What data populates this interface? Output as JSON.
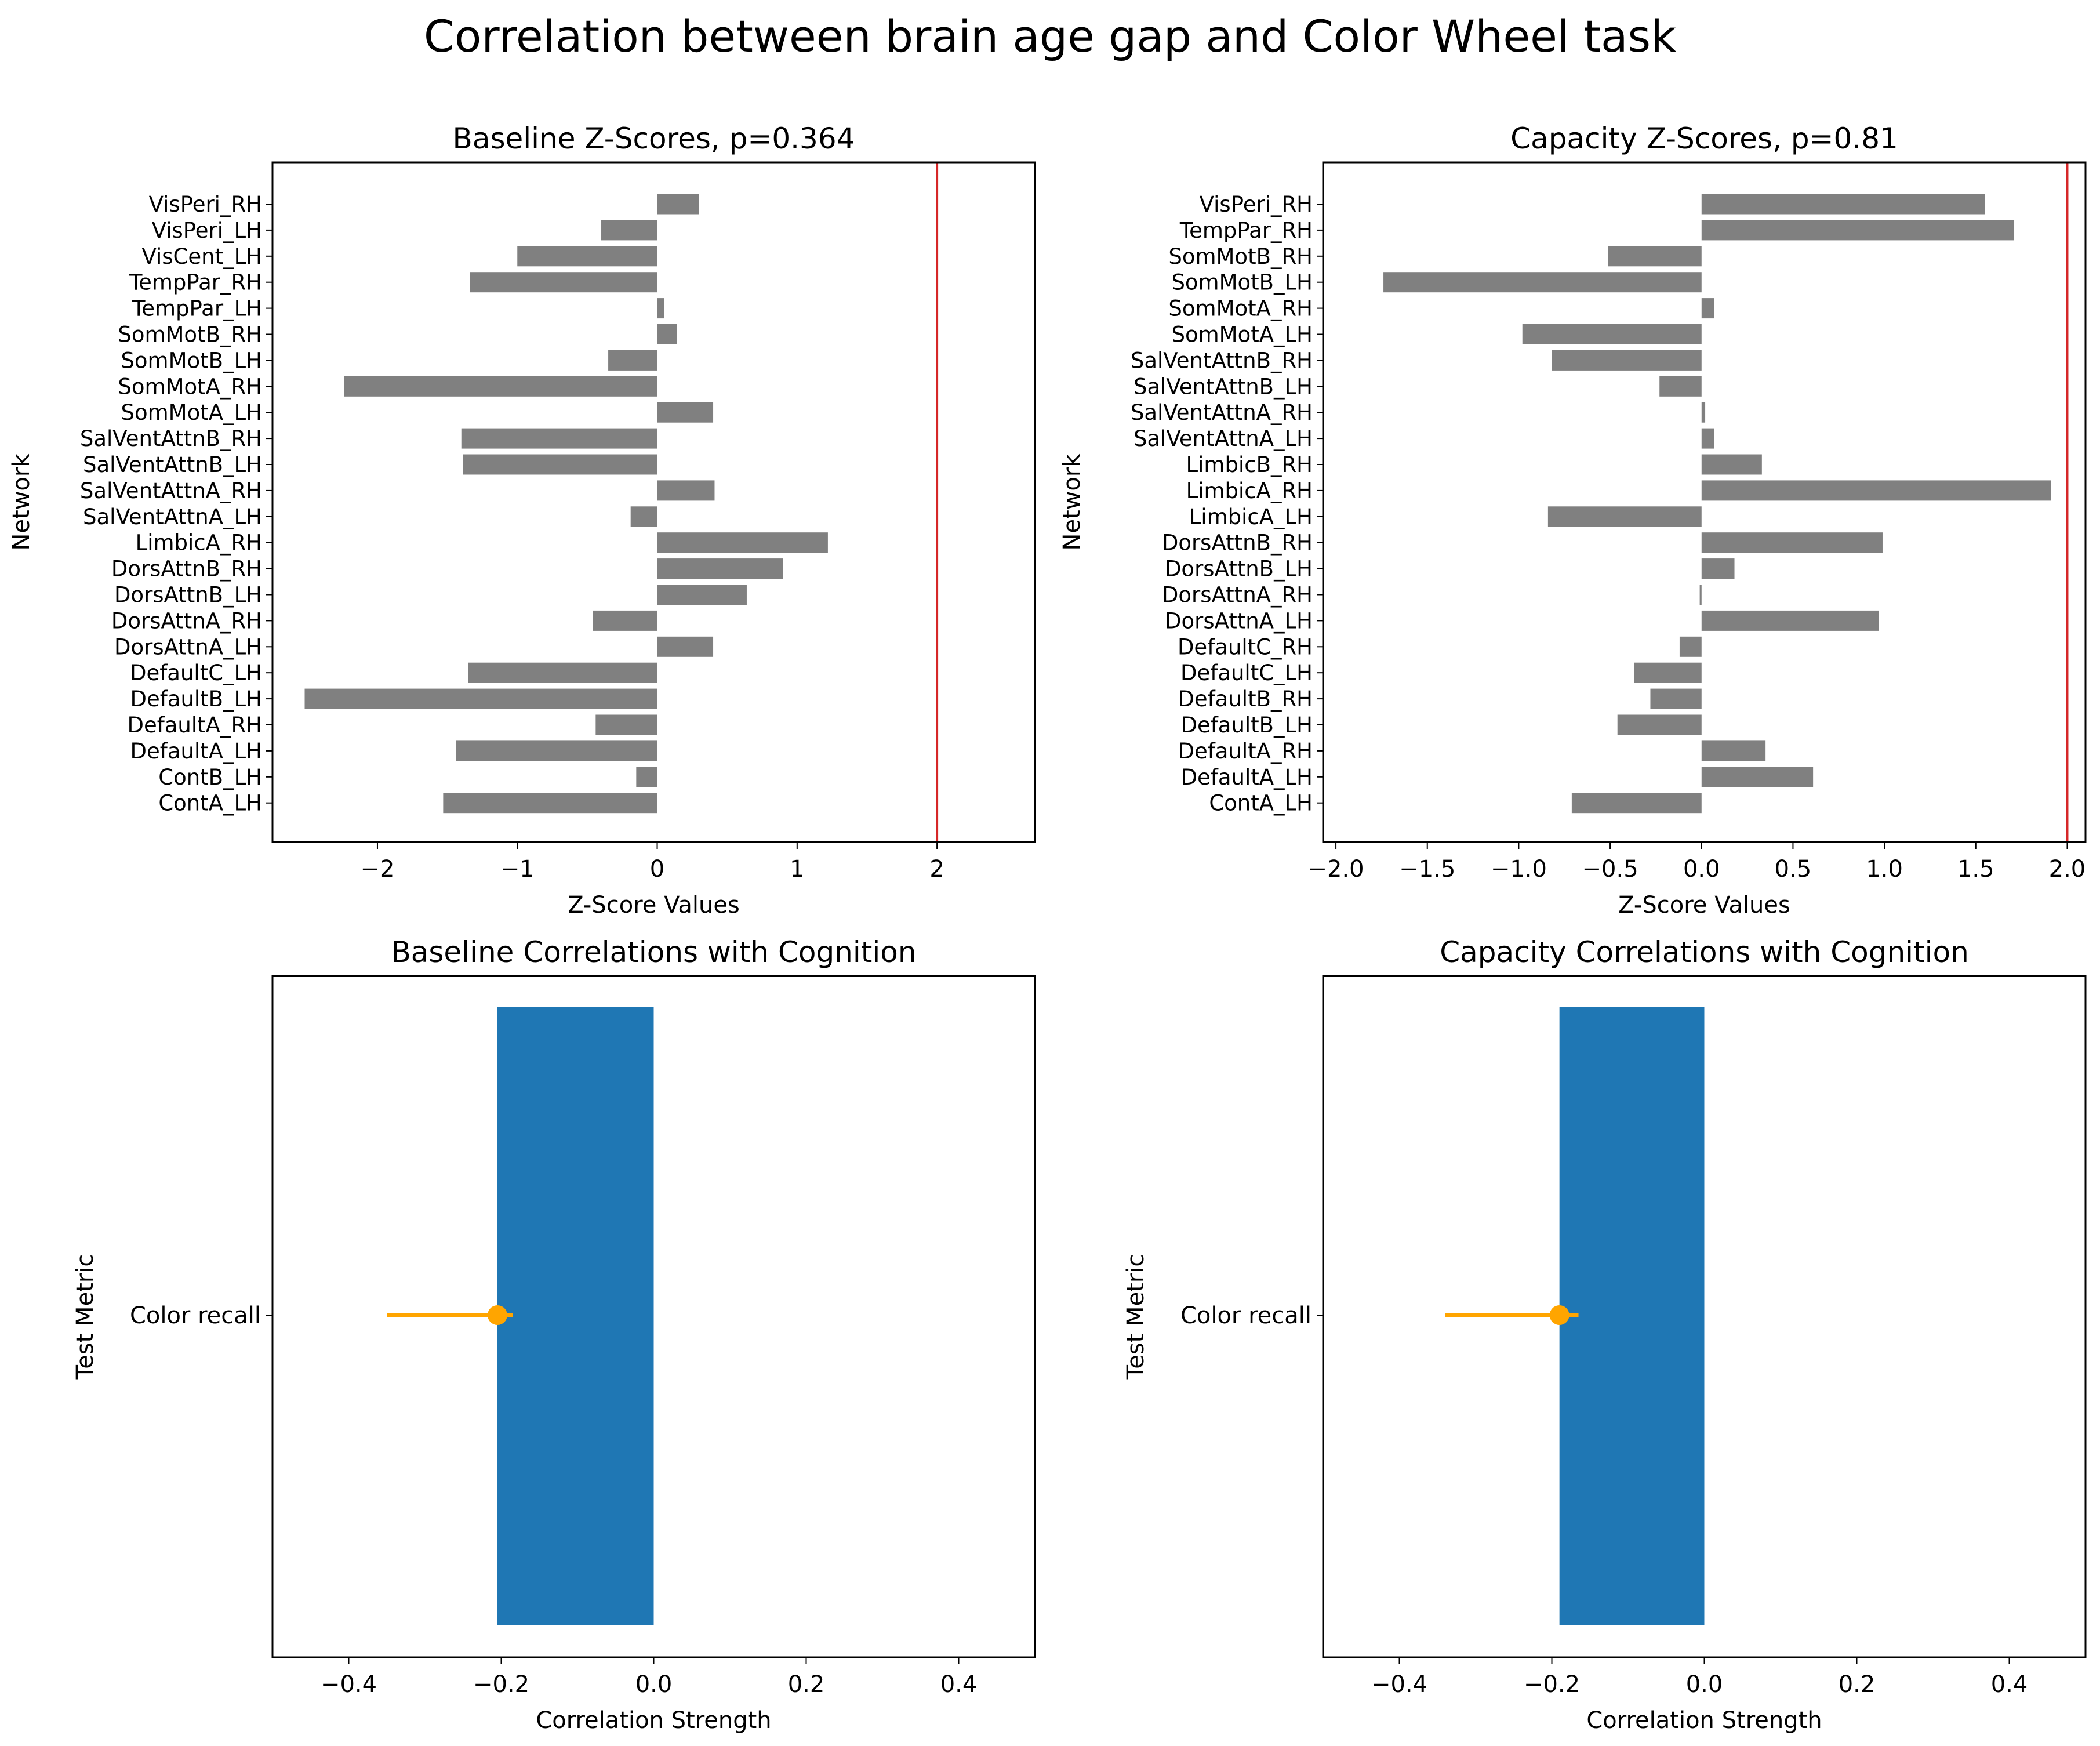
{
  "figure": {
    "suptitle": "Correlation between brain age gap and Color Wheel task"
  },
  "colors": {
    "bar_gray": "#808080",
    "bar_blue": "#1f77b4",
    "threshold_red": "#d62728",
    "error_orange": "#ffa500",
    "axis": "#000000"
  },
  "chart_data": [
    {
      "type": "bar",
      "orientation": "horizontal",
      "title": "Baseline Z-Scores, p=0.364",
      "xlabel": "Z-Score Values",
      "ylabel": "Network",
      "xlim": [
        -2.75,
        2.7
      ],
      "xticks": [
        -2,
        -1,
        0,
        1,
        2
      ],
      "xtick_labels": [
        "−2",
        "−1",
        "0",
        "1",
        "2"
      ],
      "threshold_line": 2,
      "categories": [
        "VisPeri_RH",
        "VisPeri_LH",
        "VisCent_LH",
        "TempPar_RH",
        "TempPar_LH",
        "SomMotB_RH",
        "SomMotB_LH",
        "SomMotA_RH",
        "SomMotA_LH",
        "SalVentAttnB_RH",
        "SalVentAttnB_LH",
        "SalVentAttnA_RH",
        "SalVentAttnA_LH",
        "LimbicA_RH",
        "DorsAttnB_RH",
        "DorsAttnB_LH",
        "DorsAttnA_RH",
        "DorsAttnA_LH",
        "DefaultC_LH",
        "DefaultB_LH",
        "DefaultA_RH",
        "DefaultA_LH",
        "ContB_LH",
        "ContA_LH"
      ],
      "values": [
        0.3,
        -0.4,
        -1.0,
        -1.34,
        0.05,
        0.14,
        -0.35,
        -2.24,
        0.4,
        -1.4,
        -1.39,
        0.41,
        -0.19,
        1.22,
        0.9,
        0.64,
        -0.46,
        0.4,
        -1.35,
        -2.52,
        -0.44,
        -1.44,
        -0.15,
        -1.53
      ]
    },
    {
      "type": "bar",
      "orientation": "horizontal",
      "title": "Capacity Z-Scores, p=0.81",
      "xlabel": "Z-Score Values",
      "ylabel": "Network",
      "xlim": [
        -2.07,
        2.1
      ],
      "xticks": [
        -2.0,
        -1.5,
        -1.0,
        -0.5,
        0.0,
        0.5,
        1.0,
        1.5,
        2.0
      ],
      "xtick_labels": [
        "−2.0",
        "−1.5",
        "−1.0",
        "−0.5",
        "0.0",
        "0.5",
        "1.0",
        "1.5",
        "2.0"
      ],
      "threshold_line": 2,
      "categories": [
        "VisPeri_RH",
        "TempPar_RH",
        "SomMotB_RH",
        "SomMotB_LH",
        "SomMotA_RH",
        "SomMotA_LH",
        "SalVentAttnB_RH",
        "SalVentAttnB_LH",
        "SalVentAttnA_RH",
        "SalVentAttnA_LH",
        "LimbicB_RH",
        "LimbicA_RH",
        "LimbicA_LH",
        "DorsAttnB_RH",
        "DorsAttnB_LH",
        "DorsAttnA_RH",
        "DorsAttnA_LH",
        "DefaultC_RH",
        "DefaultC_LH",
        "DefaultB_RH",
        "DefaultB_LH",
        "DefaultA_RH",
        "DefaultA_LH",
        "ContA_LH"
      ],
      "values": [
        1.55,
        1.71,
        -0.51,
        -1.74,
        0.07,
        -0.98,
        -0.82,
        -0.23,
        0.02,
        0.07,
        0.33,
        1.91,
        -0.84,
        0.99,
        0.18,
        -0.01,
        0.97,
        -0.12,
        -0.37,
        -0.28,
        -0.46,
        0.35,
        0.61,
        -0.71
      ]
    },
    {
      "type": "bar",
      "orientation": "horizontal",
      "title": "Baseline Correlations with Cognition",
      "xlabel": "Correlation Strength",
      "ylabel": "Test Metric",
      "xlim": [
        -0.5,
        0.5
      ],
      "xticks": [
        -0.4,
        -0.2,
        0.0,
        0.2,
        0.4
      ],
      "xtick_labels": [
        "−0.4",
        "−0.2",
        "0.0",
        "0.2",
        "0.4"
      ],
      "categories": [
        "Color recall"
      ],
      "values": [
        -0.205
      ],
      "error_point": -0.205,
      "error_range": [
        -0.35,
        -0.185
      ]
    },
    {
      "type": "bar",
      "orientation": "horizontal",
      "title": "Capacity Correlations with Cognition",
      "xlabel": "Correlation Strength",
      "ylabel": "Test Metric",
      "xlim": [
        -0.5,
        0.5
      ],
      "xticks": [
        -0.4,
        -0.2,
        0.0,
        0.2,
        0.4
      ],
      "xtick_labels": [
        "−0.4",
        "−0.2",
        "0.0",
        "0.2",
        "0.4"
      ],
      "categories": [
        "Color recall"
      ],
      "values": [
        -0.19
      ],
      "error_point": -0.19,
      "error_range": [
        -0.34,
        -0.165
      ]
    }
  ]
}
